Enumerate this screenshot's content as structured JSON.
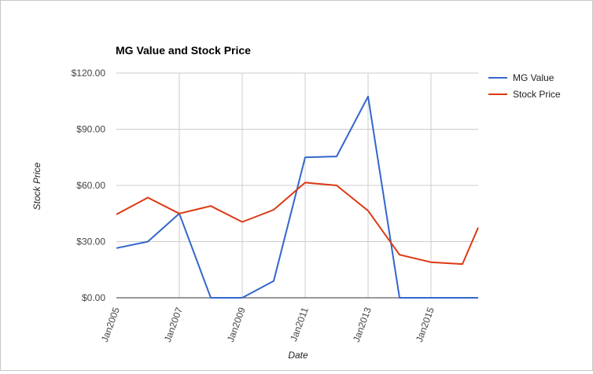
{
  "chart_data": {
    "type": "line",
    "title": "MG Value and Stock Price",
    "xlabel": "Date",
    "ylabel": "Stock Price",
    "x": [
      2005,
      2006,
      2007,
      2008,
      2009,
      2010,
      2011,
      2012,
      2013,
      2014,
      2015,
      2016,
      2016.5
    ],
    "x_ticks": [
      2005,
      2007,
      2009,
      2011,
      2013,
      2015
    ],
    "x_tick_labels": [
      "Jan2005",
      "Jan2007",
      "Jan2009",
      "Jan2011",
      "Jan2013",
      "Jan2015"
    ],
    "xlim": [
      2005,
      2016.5
    ],
    "ylim": [
      0,
      120
    ],
    "y_ticks": [
      0,
      30,
      60,
      90,
      120
    ],
    "y_tick_labels": [
      "$0.00",
      "$30.00",
      "$60.00",
      "$90.00",
      "$120.00"
    ],
    "grid": true,
    "legend_position": "right",
    "series": [
      {
        "name": "MG Value",
        "color": "#3366cc",
        "points": [
          [
            2005,
            26.5
          ],
          [
            2006,
            30
          ],
          [
            2007,
            45
          ],
          [
            2008,
            0
          ],
          [
            2009,
            0
          ],
          [
            2010,
            9
          ],
          [
            2011,
            75
          ],
          [
            2012,
            75.5
          ],
          [
            2013,
            107.5
          ],
          [
            2014,
            0
          ],
          [
            2015,
            0
          ],
          [
            2016,
            0
          ],
          [
            2016.5,
            0
          ]
        ]
      },
      {
        "name": "Stock Price",
        "color": "#dc3912",
        "points": [
          [
            2005,
            44.5
          ],
          [
            2006,
            53.5
          ],
          [
            2007,
            45
          ],
          [
            2008,
            49
          ],
          [
            2009,
            40.5
          ],
          [
            2010,
            47
          ],
          [
            2011,
            61.5
          ],
          [
            2012,
            60
          ],
          [
            2013,
            46.5
          ],
          [
            2014,
            23
          ],
          [
            2015,
            19
          ],
          [
            2016,
            18
          ],
          [
            2016.5,
            37.5
          ]
        ]
      }
    ]
  }
}
